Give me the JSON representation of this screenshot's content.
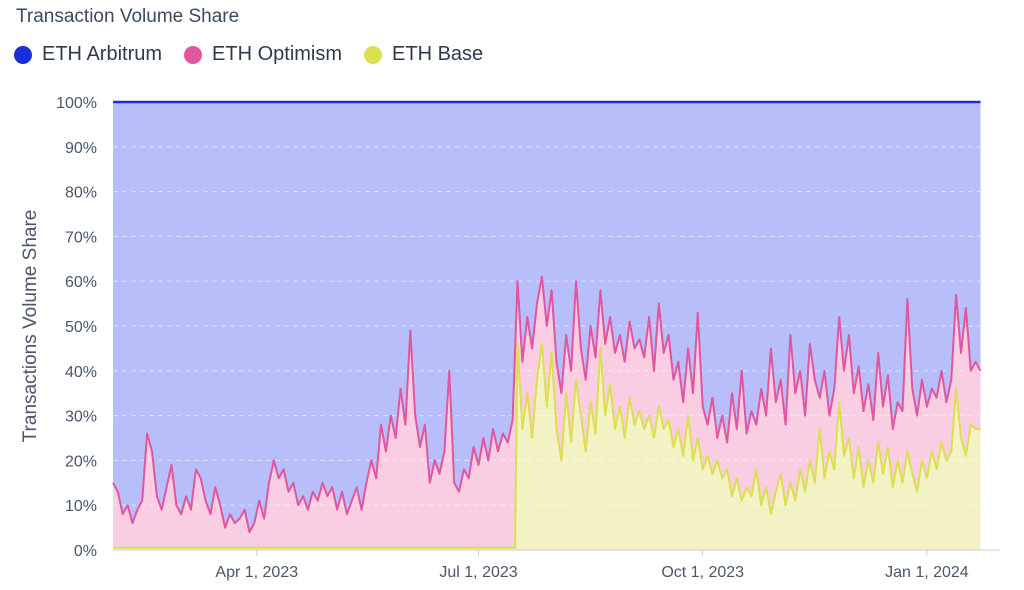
{
  "chart_data": {
    "type": "area",
    "stacked": "percent",
    "title": "Transaction Volume Share",
    "ylabel": "Transactions Volume Share",
    "xlabel": "",
    "ylim": [
      0,
      100
    ],
    "y_ticks": [
      "0%",
      "10%",
      "20%",
      "30%",
      "40%",
      "50%",
      "60%",
      "70%",
      "80%",
      "90%",
      "100%"
    ],
    "x_range": [
      "2023-02-01",
      "2024-01-31"
    ],
    "x_ticks": [
      {
        "date": "2023-04-01",
        "label": "Apr 1, 2023"
      },
      {
        "date": "2023-07-01",
        "label": "Jul 1, 2023"
      },
      {
        "date": "2023-10-01",
        "label": "Oct 1, 2023"
      },
      {
        "date": "2024-01-01",
        "label": "Jan 1, 2024"
      }
    ],
    "grid": true,
    "legend_position": "top-left",
    "series": [
      {
        "name": "ETH Arbitrum",
        "color": "#1a2fd9",
        "fill": "#b7befa",
        "role": "remainder"
      },
      {
        "name": "ETH Optimism",
        "color": "#e0569f",
        "fill": "#f9cde2",
        "role": "upper-line",
        "points": [
          [
            "2023-02-01",
            15
          ],
          [
            "2023-02-03",
            13
          ],
          [
            "2023-02-05",
            8
          ],
          [
            "2023-02-07",
            10
          ],
          [
            "2023-02-09",
            6
          ],
          [
            "2023-02-11",
            9
          ],
          [
            "2023-02-13",
            11
          ],
          [
            "2023-02-15",
            26
          ],
          [
            "2023-02-17",
            22
          ],
          [
            "2023-02-19",
            12
          ],
          [
            "2023-02-21",
            9
          ],
          [
            "2023-02-23",
            14
          ],
          [
            "2023-02-25",
            19
          ],
          [
            "2023-02-27",
            10
          ],
          [
            "2023-03-01",
            8
          ],
          [
            "2023-03-03",
            12
          ],
          [
            "2023-03-05",
            9
          ],
          [
            "2023-03-07",
            18
          ],
          [
            "2023-03-09",
            16
          ],
          [
            "2023-03-11",
            11
          ],
          [
            "2023-03-13",
            8
          ],
          [
            "2023-03-15",
            14
          ],
          [
            "2023-03-17",
            10
          ],
          [
            "2023-03-19",
            5
          ],
          [
            "2023-03-21",
            8
          ],
          [
            "2023-03-23",
            6
          ],
          [
            "2023-03-25",
            7
          ],
          [
            "2023-03-27",
            9
          ],
          [
            "2023-03-29",
            4
          ],
          [
            "2023-03-31",
            6
          ],
          [
            "2023-04-02",
            11
          ],
          [
            "2023-04-04",
            7
          ],
          [
            "2023-04-06",
            15
          ],
          [
            "2023-04-08",
            20
          ],
          [
            "2023-04-10",
            16
          ],
          [
            "2023-04-12",
            18
          ],
          [
            "2023-04-14",
            13
          ],
          [
            "2023-04-16",
            15
          ],
          [
            "2023-04-18",
            10
          ],
          [
            "2023-04-20",
            12
          ],
          [
            "2023-04-22",
            9
          ],
          [
            "2023-04-24",
            13
          ],
          [
            "2023-04-26",
            11
          ],
          [
            "2023-04-28",
            15
          ],
          [
            "2023-04-30",
            12
          ],
          [
            "2023-05-02",
            14
          ],
          [
            "2023-05-04",
            9
          ],
          [
            "2023-05-06",
            13
          ],
          [
            "2023-05-08",
            8
          ],
          [
            "2023-05-10",
            11
          ],
          [
            "2023-05-12",
            14
          ],
          [
            "2023-05-14",
            9
          ],
          [
            "2023-05-16",
            15
          ],
          [
            "2023-05-18",
            20
          ],
          [
            "2023-05-20",
            16
          ],
          [
            "2023-05-22",
            28
          ],
          [
            "2023-05-24",
            22
          ],
          [
            "2023-05-26",
            30
          ],
          [
            "2023-05-28",
            25
          ],
          [
            "2023-05-30",
            36
          ],
          [
            "2023-06-01",
            28
          ],
          [
            "2023-06-03",
            49
          ],
          [
            "2023-06-05",
            30
          ],
          [
            "2023-06-07",
            23
          ],
          [
            "2023-06-09",
            28
          ],
          [
            "2023-06-11",
            15
          ],
          [
            "2023-06-13",
            20
          ],
          [
            "2023-06-15",
            17
          ],
          [
            "2023-06-17",
            22
          ],
          [
            "2023-06-19",
            40
          ],
          [
            "2023-06-21",
            15
          ],
          [
            "2023-06-23",
            13
          ],
          [
            "2023-06-25",
            18
          ],
          [
            "2023-06-27",
            16
          ],
          [
            "2023-06-29",
            23
          ],
          [
            "2023-07-01",
            19
          ],
          [
            "2023-07-03",
            25
          ],
          [
            "2023-07-05",
            20
          ],
          [
            "2023-07-07",
            27
          ],
          [
            "2023-07-09",
            22
          ],
          [
            "2023-07-11",
            26
          ],
          [
            "2023-07-13",
            24
          ],
          [
            "2023-07-15",
            29
          ],
          [
            "2023-07-17",
            60
          ],
          [
            "2023-07-19",
            42
          ],
          [
            "2023-07-21",
            52
          ],
          [
            "2023-07-23",
            45
          ],
          [
            "2023-07-25",
            55
          ],
          [
            "2023-07-27",
            61
          ],
          [
            "2023-07-29",
            50
          ],
          [
            "2023-07-31",
            58
          ],
          [
            "2023-08-02",
            42
          ],
          [
            "2023-08-04",
            35
          ],
          [
            "2023-08-06",
            48
          ],
          [
            "2023-08-08",
            40
          ],
          [
            "2023-08-10",
            60
          ],
          [
            "2023-08-12",
            45
          ],
          [
            "2023-08-14",
            38
          ],
          [
            "2023-08-16",
            50
          ],
          [
            "2023-08-18",
            43
          ],
          [
            "2023-08-20",
            58
          ],
          [
            "2023-08-22",
            46
          ],
          [
            "2023-08-24",
            52
          ],
          [
            "2023-08-26",
            44
          ],
          [
            "2023-08-28",
            48
          ],
          [
            "2023-08-30",
            42
          ],
          [
            "2023-09-01",
            51
          ],
          [
            "2023-09-03",
            45
          ],
          [
            "2023-09-05",
            47
          ],
          [
            "2023-09-07",
            43
          ],
          [
            "2023-09-09",
            52
          ],
          [
            "2023-09-11",
            40
          ],
          [
            "2023-09-13",
            55
          ],
          [
            "2023-09-15",
            44
          ],
          [
            "2023-09-17",
            48
          ],
          [
            "2023-09-19",
            38
          ],
          [
            "2023-09-21",
            42
          ],
          [
            "2023-09-23",
            33
          ],
          [
            "2023-09-25",
            45
          ],
          [
            "2023-09-27",
            35
          ],
          [
            "2023-09-29",
            53
          ],
          [
            "2023-10-01",
            32
          ],
          [
            "2023-10-03",
            28
          ],
          [
            "2023-10-05",
            34
          ],
          [
            "2023-10-07",
            25
          ],
          [
            "2023-10-09",
            30
          ],
          [
            "2023-10-11",
            24
          ],
          [
            "2023-10-13",
            35
          ],
          [
            "2023-10-15",
            27
          ],
          [
            "2023-10-17",
            40
          ],
          [
            "2023-10-19",
            26
          ],
          [
            "2023-10-21",
            31
          ],
          [
            "2023-10-23",
            28
          ],
          [
            "2023-10-25",
            36
          ],
          [
            "2023-10-27",
            30
          ],
          [
            "2023-10-29",
            45
          ],
          [
            "2023-10-31",
            33
          ],
          [
            "2023-11-02",
            38
          ],
          [
            "2023-11-04",
            28
          ],
          [
            "2023-11-06",
            48
          ],
          [
            "2023-11-08",
            35
          ],
          [
            "2023-11-10",
            40
          ],
          [
            "2023-11-12",
            30
          ],
          [
            "2023-11-14",
            46
          ],
          [
            "2023-11-16",
            38
          ],
          [
            "2023-11-18",
            34
          ],
          [
            "2023-11-20",
            40
          ],
          [
            "2023-11-22",
            30
          ],
          [
            "2023-11-24",
            36
          ],
          [
            "2023-11-26",
            52
          ],
          [
            "2023-11-28",
            40
          ],
          [
            "2023-11-30",
            48
          ],
          [
            "2023-12-02",
            35
          ],
          [
            "2023-12-04",
            41
          ],
          [
            "2023-12-06",
            31
          ],
          [
            "2023-12-08",
            37
          ],
          [
            "2023-12-10",
            29
          ],
          [
            "2023-12-12",
            44
          ],
          [
            "2023-12-14",
            32
          ],
          [
            "2023-12-16",
            39
          ],
          [
            "2023-12-18",
            27
          ],
          [
            "2023-12-20",
            33
          ],
          [
            "2023-12-22",
            31
          ],
          [
            "2023-12-24",
            56
          ],
          [
            "2023-12-26",
            36
          ],
          [
            "2023-12-28",
            30
          ],
          [
            "2023-12-30",
            38
          ],
          [
            "2024-01-01",
            32
          ],
          [
            "2024-01-03",
            36
          ],
          [
            "2024-01-05",
            34
          ],
          [
            "2024-01-07",
            40
          ],
          [
            "2024-01-09",
            33
          ],
          [
            "2024-01-11",
            38
          ],
          [
            "2024-01-13",
            57
          ],
          [
            "2024-01-15",
            44
          ],
          [
            "2024-01-17",
            54
          ],
          [
            "2024-01-19",
            40
          ],
          [
            "2024-01-21",
            42
          ],
          [
            "2024-01-23",
            40
          ]
        ]
      },
      {
        "name": "ETH Base",
        "color": "#dcdf52",
        "fill": "#f3f2c4",
        "role": "lower-line",
        "points": [
          [
            "2023-02-01",
            0.5
          ],
          [
            "2023-07-15",
            0.5
          ],
          [
            "2023-07-16",
            0.5
          ],
          [
            "2023-07-17",
            46
          ],
          [
            "2023-07-19",
            27
          ],
          [
            "2023-07-21",
            35
          ],
          [
            "2023-07-23",
            25
          ],
          [
            "2023-07-25",
            38
          ],
          [
            "2023-07-27",
            46
          ],
          [
            "2023-07-29",
            32
          ],
          [
            "2023-07-31",
            44
          ],
          [
            "2023-08-02",
            27
          ],
          [
            "2023-08-04",
            20
          ],
          [
            "2023-08-06",
            35
          ],
          [
            "2023-08-08",
            24
          ],
          [
            "2023-08-10",
            38
          ],
          [
            "2023-08-12",
            30
          ],
          [
            "2023-08-14",
            22
          ],
          [
            "2023-08-16",
            33
          ],
          [
            "2023-08-18",
            26
          ],
          [
            "2023-08-20",
            45
          ],
          [
            "2023-08-22",
            30
          ],
          [
            "2023-08-24",
            37
          ],
          [
            "2023-08-26",
            27
          ],
          [
            "2023-08-28",
            32
          ],
          [
            "2023-08-30",
            25
          ],
          [
            "2023-09-01",
            34
          ],
          [
            "2023-09-03",
            28
          ],
          [
            "2023-09-05",
            31
          ],
          [
            "2023-09-07",
            27
          ],
          [
            "2023-09-09",
            30
          ],
          [
            "2023-09-11",
            25
          ],
          [
            "2023-09-13",
            32
          ],
          [
            "2023-09-15",
            27
          ],
          [
            "2023-09-17",
            29
          ],
          [
            "2023-09-19",
            23
          ],
          [
            "2023-09-21",
            27
          ],
          [
            "2023-09-23",
            21
          ],
          [
            "2023-09-25",
            30
          ],
          [
            "2023-09-27",
            20
          ],
          [
            "2023-09-29",
            25
          ],
          [
            "2023-10-01",
            18
          ],
          [
            "2023-10-03",
            21
          ],
          [
            "2023-10-05",
            17
          ],
          [
            "2023-10-07",
            20
          ],
          [
            "2023-10-09",
            16
          ],
          [
            "2023-10-11",
            18
          ],
          [
            "2023-10-13",
            12
          ],
          [
            "2023-10-15",
            16
          ],
          [
            "2023-10-17",
            11
          ],
          [
            "2023-10-19",
            14
          ],
          [
            "2023-10-21",
            12
          ],
          [
            "2023-10-23",
            18
          ],
          [
            "2023-10-25",
            10
          ],
          [
            "2023-10-27",
            14
          ],
          [
            "2023-10-29",
            8
          ],
          [
            "2023-10-31",
            13
          ],
          [
            "2023-11-02",
            17
          ],
          [
            "2023-11-04",
            10
          ],
          [
            "2023-11-06",
            15
          ],
          [
            "2023-11-08",
            11
          ],
          [
            "2023-11-10",
            18
          ],
          [
            "2023-11-12",
            13
          ],
          [
            "2023-11-14",
            20
          ],
          [
            "2023-11-16",
            15
          ],
          [
            "2023-11-18",
            27
          ],
          [
            "2023-11-20",
            16
          ],
          [
            "2023-11-22",
            22
          ],
          [
            "2023-11-24",
            18
          ],
          [
            "2023-11-26",
            33
          ],
          [
            "2023-11-28",
            21
          ],
          [
            "2023-11-30",
            25
          ],
          [
            "2023-12-02",
            16
          ],
          [
            "2023-12-04",
            23
          ],
          [
            "2023-12-06",
            14
          ],
          [
            "2023-12-08",
            20
          ],
          [
            "2023-12-10",
            15
          ],
          [
            "2023-12-12",
            24
          ],
          [
            "2023-12-14",
            17
          ],
          [
            "2023-12-16",
            23
          ],
          [
            "2023-12-18",
            14
          ],
          [
            "2023-12-20",
            20
          ],
          [
            "2023-12-22",
            15
          ],
          [
            "2023-12-24",
            22
          ],
          [
            "2023-12-26",
            17
          ],
          [
            "2023-12-28",
            13
          ],
          [
            "2023-12-30",
            20
          ],
          [
            "2024-01-01",
            16
          ],
          [
            "2024-01-03",
            22
          ],
          [
            "2024-01-05",
            18
          ],
          [
            "2024-01-07",
            24
          ],
          [
            "2024-01-09",
            20
          ],
          [
            "2024-01-11",
            22
          ],
          [
            "2024-01-13",
            36
          ],
          [
            "2024-01-15",
            25
          ],
          [
            "2024-01-17",
            21
          ],
          [
            "2024-01-19",
            28
          ],
          [
            "2024-01-21",
            27
          ],
          [
            "2024-01-23",
            27
          ]
        ]
      }
    ]
  }
}
